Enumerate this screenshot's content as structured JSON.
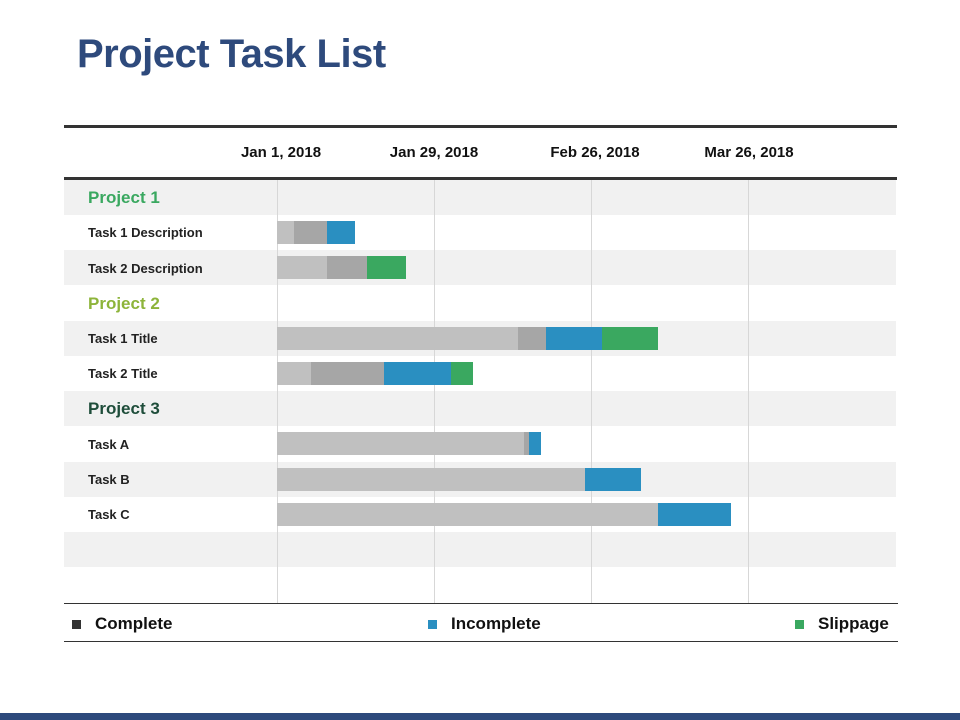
{
  "slide": {
    "title": "Project Task List"
  },
  "colors": {
    "complete_light": "#c0c0c0",
    "complete_dark": "#a6a6a6",
    "incomplete": "#2a8fc1",
    "slippage": "#3aa860",
    "project1": "#3aa860",
    "project2": "#8db43a",
    "project3": "#1e4d3a"
  },
  "chart_data": {
    "type": "gantt",
    "x_axis": {
      "tick_labels": [
        "Jan 1, 2018",
        "Jan 29, 2018",
        "Feb 26, 2018",
        "Mar 26, 2018"
      ],
      "range_start": "2018-01-01",
      "range_end": "2018-04-23"
    },
    "legend": {
      "position": "bottom",
      "entries": [
        {
          "name": "Complete",
          "color": "#333333"
        },
        {
          "name": "Incomplete",
          "color": "#2a8fc1"
        },
        {
          "name": "Slippage",
          "color": "#3aa860"
        }
      ]
    },
    "rows": [
      {
        "label": "Project 1",
        "kind": "project",
        "color_key": "project1",
        "segments": []
      },
      {
        "label": "Task 1 Description",
        "kind": "task",
        "segments": [
          {
            "start": "2018-01-01",
            "end": "2018-01-04",
            "type": "complete",
            "shade": "light"
          },
          {
            "start": "2018-01-04",
            "end": "2018-01-10",
            "type": "complete",
            "shade": "dark"
          },
          {
            "start": "2018-01-10",
            "end": "2018-01-15",
            "type": "incomplete"
          }
        ]
      },
      {
        "label": "Task 2 Description",
        "kind": "task",
        "segments": [
          {
            "start": "2018-01-01",
            "end": "2018-01-10",
            "type": "complete",
            "shade": "light"
          },
          {
            "start": "2018-01-10",
            "end": "2018-01-17",
            "type": "complete",
            "shade": "dark"
          },
          {
            "start": "2018-01-17",
            "end": "2018-01-24",
            "type": "slippage"
          }
        ]
      },
      {
        "label": "Project 2",
        "kind": "project",
        "color_key": "project2",
        "segments": []
      },
      {
        "label": "Task 1 Title",
        "kind": "task",
        "segments": [
          {
            "start": "2018-01-01",
            "end": "2018-02-13",
            "type": "complete",
            "shade": "light"
          },
          {
            "start": "2018-02-13",
            "end": "2018-02-18",
            "type": "complete",
            "shade": "dark"
          },
          {
            "start": "2018-02-18",
            "end": "2018-02-28",
            "type": "incomplete"
          },
          {
            "start": "2018-02-28",
            "end": "2018-03-10",
            "type": "slippage"
          }
        ]
      },
      {
        "label": "Task 2 Title",
        "kind": "task",
        "segments": [
          {
            "start": "2018-01-01",
            "end": "2018-01-07",
            "type": "complete",
            "shade": "light"
          },
          {
            "start": "2018-01-07",
            "end": "2018-01-20",
            "type": "complete",
            "shade": "dark"
          },
          {
            "start": "2018-01-20",
            "end": "2018-02-01",
            "type": "incomplete"
          },
          {
            "start": "2018-02-01",
            "end": "2018-02-05",
            "type": "slippage"
          }
        ]
      },
      {
        "label": "Project 3",
        "kind": "project",
        "color_key": "project3",
        "segments": []
      },
      {
        "label": "Task A",
        "kind": "task",
        "segments": [
          {
            "start": "2018-01-01",
            "end": "2018-02-14",
            "type": "complete",
            "shade": "light"
          },
          {
            "start": "2018-02-14",
            "end": "2018-02-15",
            "type": "complete",
            "shade": "dark"
          },
          {
            "start": "2018-02-15",
            "end": "2018-02-17",
            "type": "incomplete"
          }
        ]
      },
      {
        "label": "Task B",
        "kind": "task",
        "segments": [
          {
            "start": "2018-01-01",
            "end": "2018-02-25",
            "type": "complete",
            "shade": "light"
          },
          {
            "start": "2018-02-25",
            "end": "2018-03-07",
            "type": "incomplete"
          }
        ]
      },
      {
        "label": "Task C",
        "kind": "task",
        "segments": [
          {
            "start": "2018-01-01",
            "end": "2018-03-10",
            "type": "complete",
            "shade": "light"
          },
          {
            "start": "2018-03-10",
            "end": "2018-03-23",
            "type": "incomplete"
          }
        ]
      },
      {
        "label": "",
        "kind": "empty",
        "segments": []
      },
      {
        "label": "",
        "kind": "empty",
        "segments": []
      }
    ]
  }
}
